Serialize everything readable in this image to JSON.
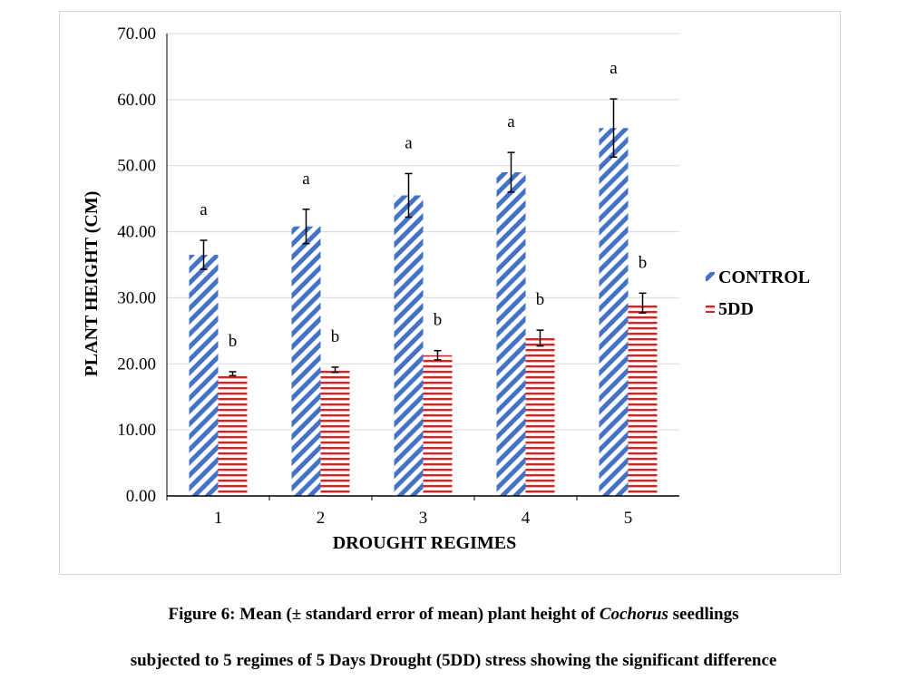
{
  "chart_data": {
    "type": "bar",
    "title": "",
    "xlabel": "DROUGHT REGIMES",
    "ylabel": "PLANT HEIGHT (CM)",
    "categories": [
      "1",
      "2",
      "3",
      "4",
      "5"
    ],
    "ylim": [
      0,
      70
    ],
    "yticks": [
      "0.00",
      "10.00",
      "20.00",
      "30.00",
      "40.00",
      "50.00",
      "60.00",
      "70.00"
    ],
    "grid": true,
    "legend_position": "right",
    "series": [
      {
        "name": "CONTROL",
        "color": "#4472c4",
        "pattern": "diagonal-stripes",
        "values": [
          36.5,
          40.8,
          45.5,
          49.0,
          55.7
        ],
        "errors": [
          2.2,
          2.6,
          3.3,
          3.0,
          4.4
        ],
        "letters": [
          "a",
          "a",
          "a",
          "a",
          "a"
        ]
      },
      {
        "name": "5DD",
        "color": "#e02020",
        "pattern": "horizontal-stripes",
        "values": [
          18.5,
          19.1,
          21.3,
          23.9,
          29.2
        ],
        "errors": [
          0.3,
          0.4,
          0.7,
          1.2,
          1.5
        ],
        "letters": [
          "b",
          "b",
          "b",
          "b",
          "b"
        ]
      }
    ]
  },
  "caption": {
    "line1_before": "Figure 6: Mean (± standard error of mean) plant height of ",
    "line1_italic": "Cochorus",
    "line1_after": " seedlings",
    "line2": "subjected to 5 regimes of 5 Days Drought (5DD) stress showing the significant difference"
  }
}
